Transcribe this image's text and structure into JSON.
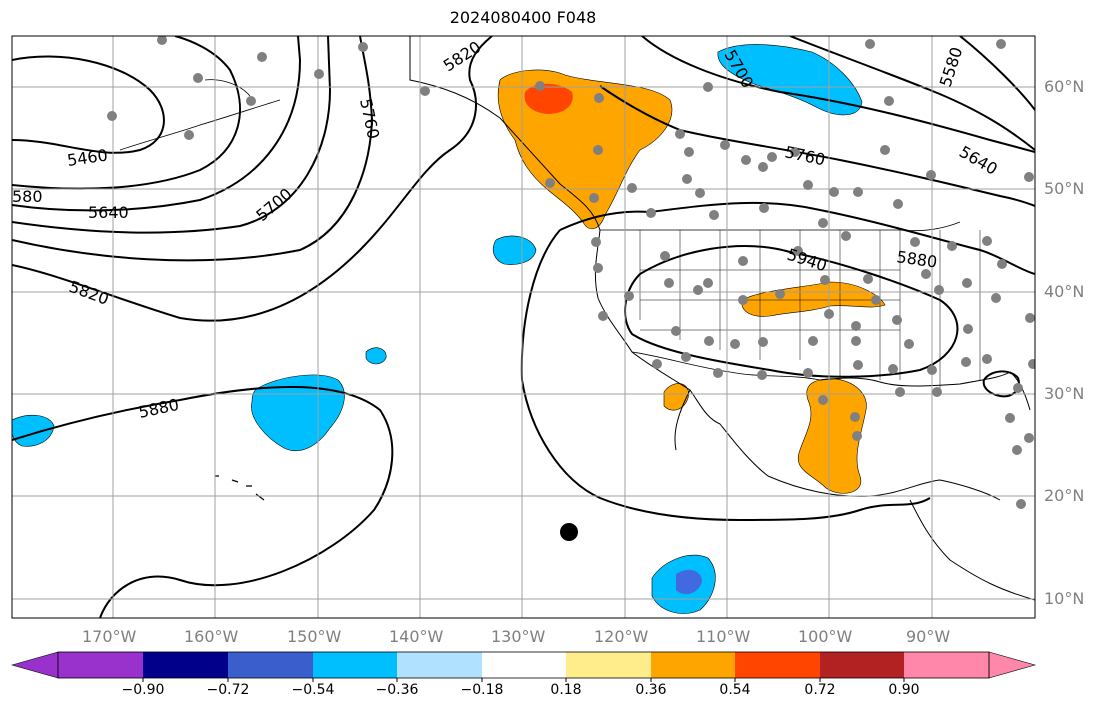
{
  "title": "2024080400 F048",
  "map": {
    "lat_labels": [
      "60°N",
      "50°N",
      "40°N",
      "30°N",
      "20°N",
      "10°N"
    ],
    "lon_labels": [
      "170°W",
      "160°W",
      "150°W",
      "140°W",
      "130°W",
      "120°W",
      "110°W",
      "100°W",
      "90°W"
    ],
    "contour_labels": [
      "5820",
      "5700",
      "5580",
      "5760",
      "5460",
      "580",
      "5640",
      "5700",
      "5760",
      "5640",
      "5820",
      "5940",
      "5880",
      "5880"
    ],
    "colors": {
      "positive_036": "#ffa500",
      "positive_054": "#ff4500",
      "negative_036": "#00bfff",
      "negative_054": "#4169e1",
      "negative_018": "#add8e6",
      "station_dot": "#808080",
      "marker_dot": "#000000",
      "grid": "#a0a0a0"
    }
  },
  "colorbar": {
    "ticks": [
      "−0.90",
      "−0.72",
      "−0.54",
      "−0.36",
      "−0.18",
      "0.18",
      "0.36",
      "0.54",
      "0.72",
      "0.90"
    ],
    "colors": [
      "#9932cc",
      "#00008b",
      "#3a5fcd",
      "#00bfff",
      "#b0e2ff",
      "#ffffff",
      "#ffec8b",
      "#ffa500",
      "#ff4500",
      "#b22222",
      "#ff88aa"
    ]
  }
}
